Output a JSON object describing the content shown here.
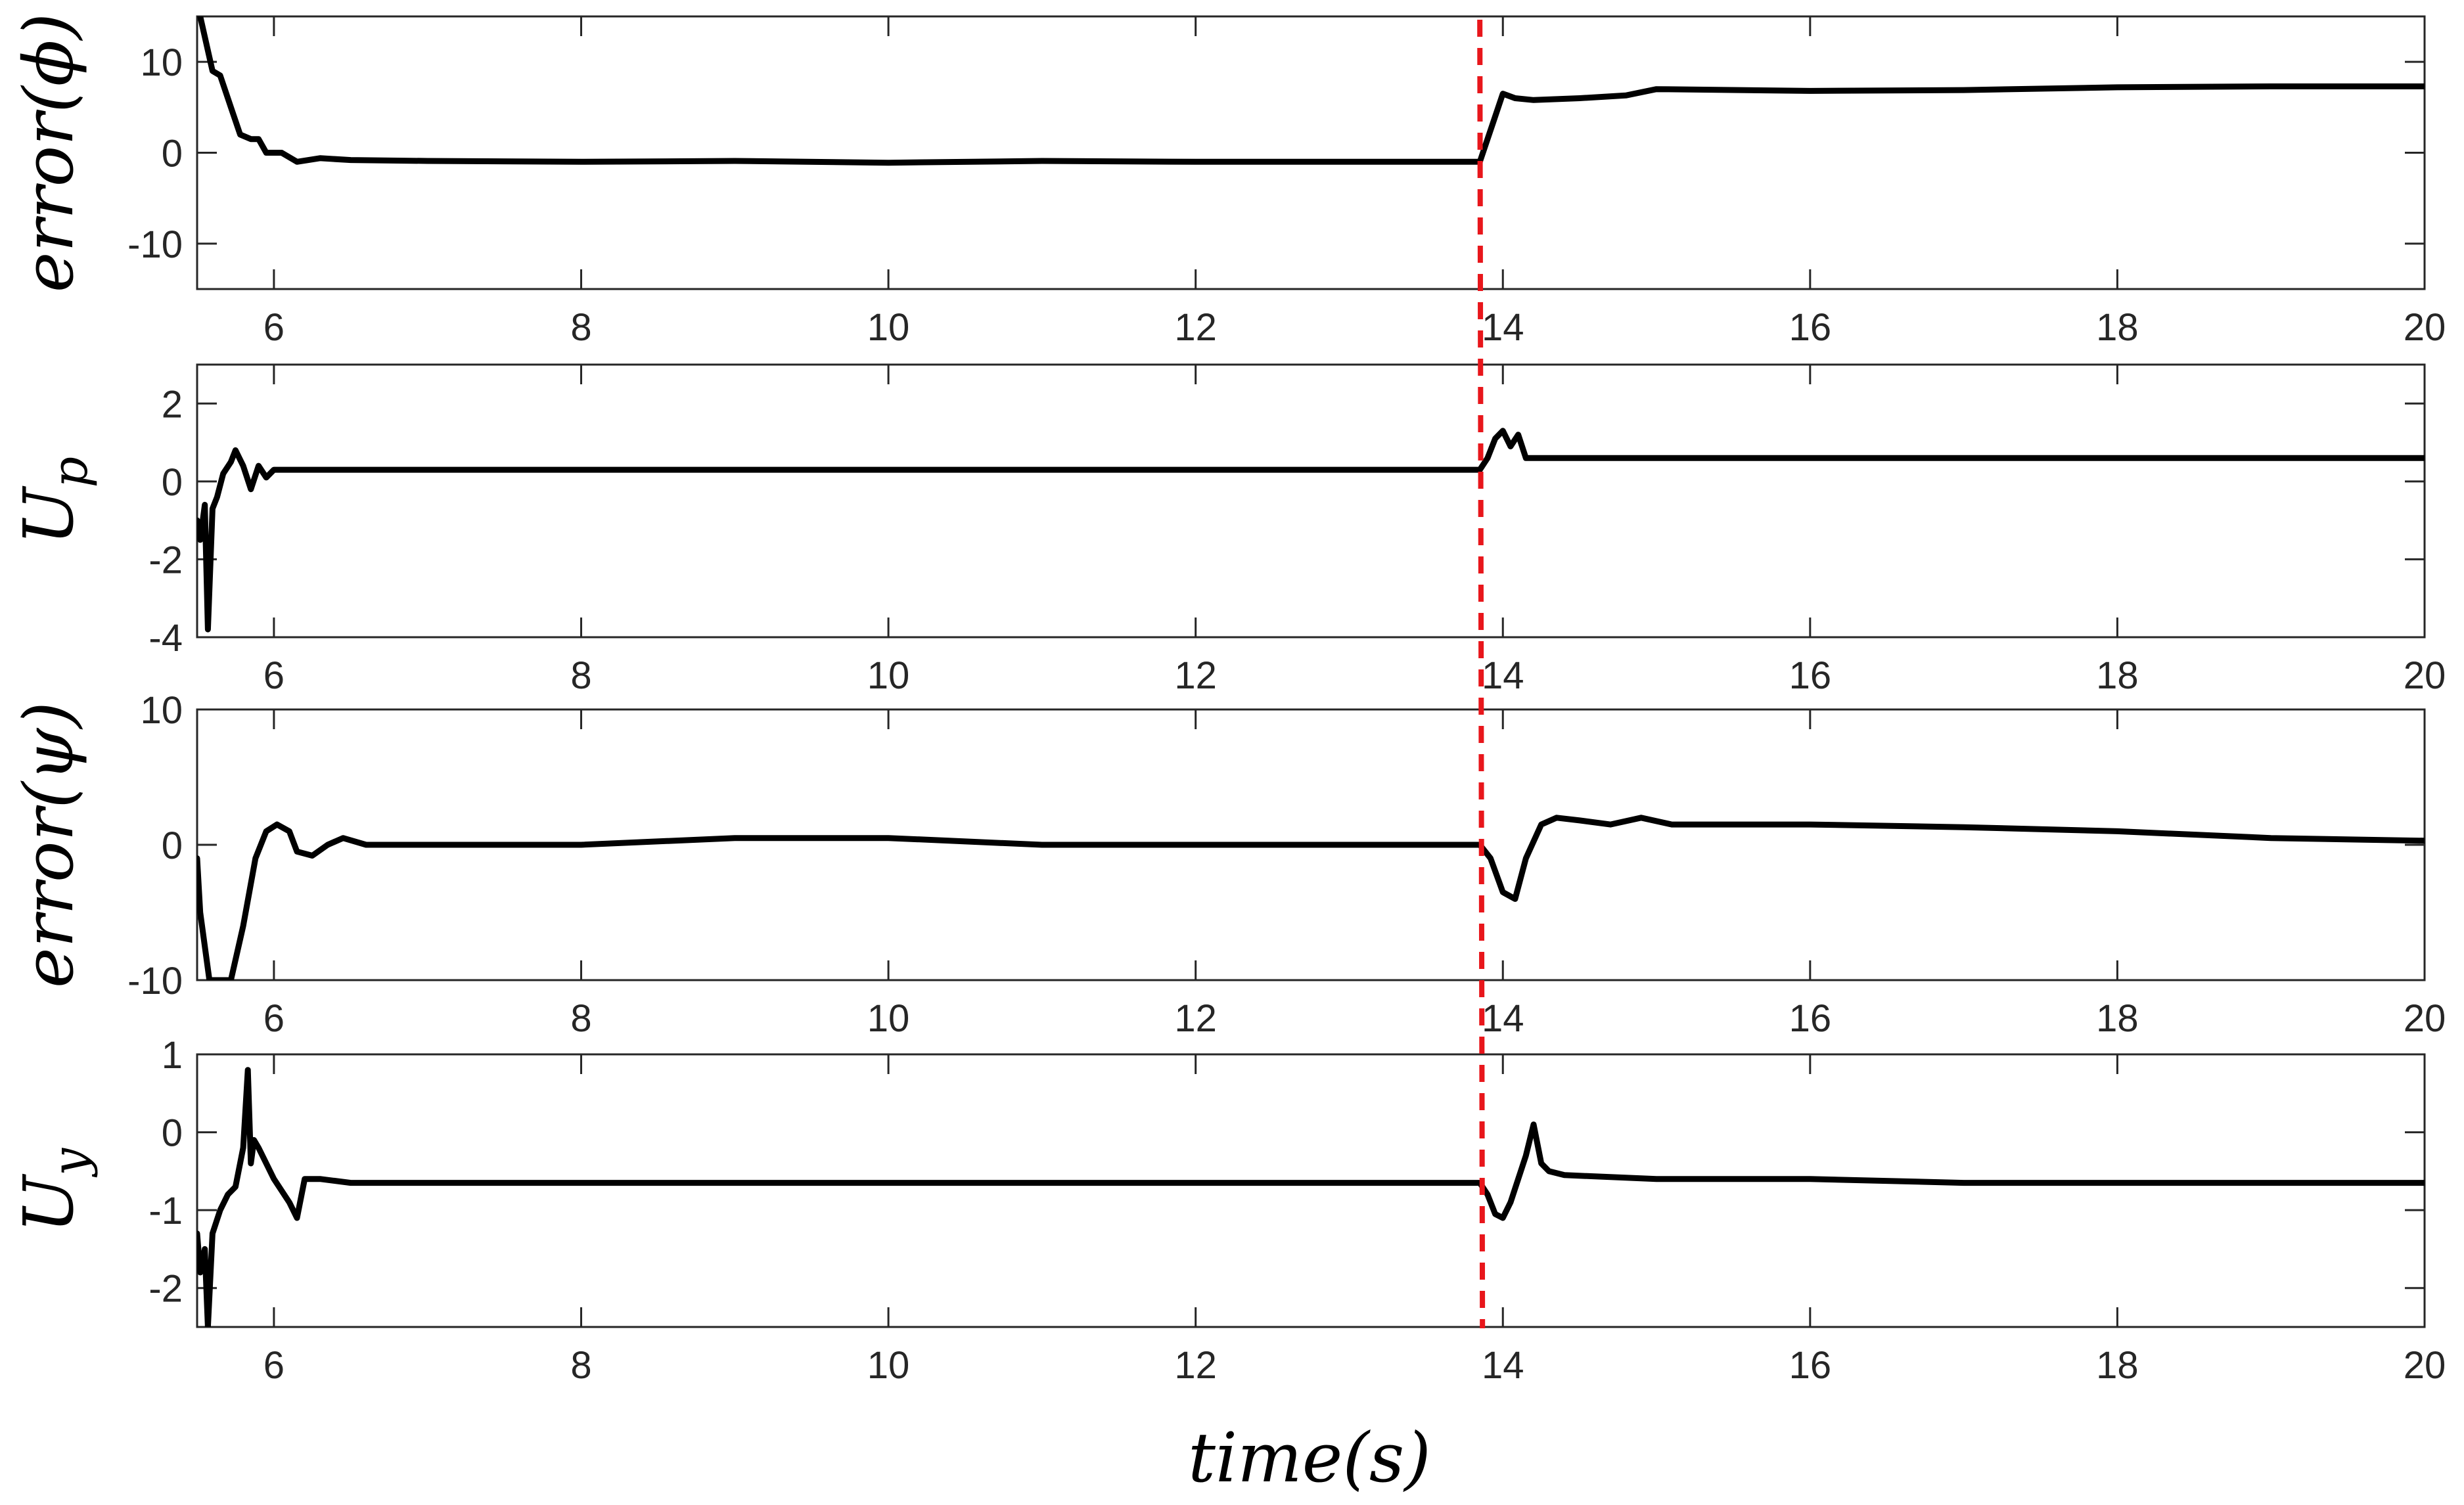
{
  "chart_data": [
    {
      "type": "line",
      "ylabel": "error(ϕ)",
      "xlabel": "",
      "xlim": [
        5.5,
        20
      ],
      "ylim": [
        -15,
        15
      ],
      "xticks": [
        "6",
        "8",
        "10",
        "12",
        "14",
        "16",
        "18",
        "20"
      ],
      "yticks": [
        "10",
        "0",
        "-10"
      ],
      "grid": false,
      "vertical_marker": 13.85,
      "series": [
        {
          "x": [
            5.52,
            5.6,
            5.65,
            5.72,
            5.78,
            5.85,
            5.9,
            5.95,
            6.05,
            6.15,
            6.3,
            6.5,
            7,
            8,
            9,
            10,
            11,
            12,
            13,
            13.85,
            13.93,
            14.0,
            14.08,
            14.2,
            14.5,
            14.8,
            15,
            16,
            17,
            18,
            19,
            20
          ],
          "y": [
            15,
            9,
            8.5,
            5,
            2,
            1.5,
            1.5,
            0,
            0,
            -1,
            -0.6,
            -0.8,
            -0.9,
            -1,
            -0.9,
            -1.1,
            -0.9,
            -1,
            -1,
            -1,
            3,
            6.5,
            6,
            5.8,
            6,
            6.3,
            7,
            6.8,
            6.9,
            7.2,
            7.3,
            7.3
          ]
        }
      ]
    },
    {
      "type": "line",
      "ylabel": "U_p",
      "xlabel": "",
      "xlim": [
        5.5,
        20
      ],
      "ylim": [
        -4,
        3
      ],
      "xticks": [
        "6",
        "8",
        "10",
        "12",
        "14",
        "16",
        "18",
        "20"
      ],
      "yticks": [
        "2",
        "0",
        "-2",
        "-4"
      ],
      "grid": false,
      "vertical_marker": 13.85,
      "series": [
        {
          "x": [
            5.5,
            5.52,
            5.55,
            5.57,
            5.6,
            5.63,
            5.67,
            5.72,
            5.75,
            5.8,
            5.85,
            5.9,
            5.95,
            6.0,
            6.1,
            6.2,
            7,
            8,
            9,
            10,
            11,
            12,
            13,
            13.85,
            13.9,
            13.95,
            14.0,
            14.05,
            14.1,
            14.15,
            14.3,
            15,
            16,
            17,
            18,
            19,
            20
          ],
          "y": [
            -1.0,
            -1.5,
            -0.6,
            -3.8,
            -0.7,
            -0.4,
            0.2,
            0.5,
            0.8,
            0.4,
            -0.2,
            0.4,
            0.1,
            0.3,
            0.3,
            0.3,
            0.3,
            0.3,
            0.3,
            0.3,
            0.3,
            0.3,
            0.3,
            0.3,
            0.6,
            1.1,
            1.3,
            0.9,
            1.2,
            0.6,
            0.6,
            0.6,
            0.6,
            0.6,
            0.6,
            0.6,
            0.6
          ]
        }
      ]
    },
    {
      "type": "line",
      "ylabel": "error(ψ)",
      "xlabel": "",
      "xlim": [
        5.5,
        20
      ],
      "ylim": [
        -10,
        10
      ],
      "xticks": [
        "6",
        "8",
        "10",
        "12",
        "14",
        "16",
        "18",
        "20"
      ],
      "yticks": [
        "10",
        "0",
        "-10"
      ],
      "grid": false,
      "vertical_marker": 13.85,
      "series": [
        {
          "x": [
            5.5,
            5.52,
            5.58,
            5.65,
            5.72,
            5.8,
            5.88,
            5.95,
            6.02,
            6.1,
            6.15,
            6.25,
            6.35,
            6.45,
            6.6,
            7,
            8,
            9,
            10,
            11,
            12,
            13,
            13.85,
            13.92,
            14.0,
            14.08,
            14.15,
            14.25,
            14.35,
            14.5,
            14.7,
            14.9,
            15.1,
            15.3,
            16,
            17,
            18,
            19,
            20
          ],
          "y": [
            -1,
            -5,
            -10,
            -10,
            -10,
            -6,
            -1,
            1,
            1.5,
            1,
            -0.5,
            -0.8,
            0,
            0.5,
            0,
            0,
            0,
            0.5,
            0.5,
            0,
            0,
            0,
            0,
            -1,
            -3.5,
            -4,
            -1,
            1.5,
            2,
            1.8,
            1.5,
            2,
            1.5,
            1.5,
            1.5,
            1.3,
            1,
            0.5,
            0.3
          ]
        }
      ]
    },
    {
      "type": "line",
      "ylabel": "U_y",
      "xlabel": "time(s)",
      "xlim": [
        5.5,
        20
      ],
      "ylim": [
        -2.5,
        1
      ],
      "xticks": [
        "6",
        "8",
        "10",
        "12",
        "14",
        "16",
        "18",
        "20"
      ],
      "yticks": [
        "1",
        "0",
        "-1",
        "-2"
      ],
      "grid": false,
      "vertical_marker": 13.85,
      "series": [
        {
          "x": [
            5.5,
            5.52,
            5.55,
            5.57,
            5.6,
            5.65,
            5.7,
            5.75,
            5.8,
            5.83,
            5.85,
            5.87,
            5.9,
            6.0,
            6.1,
            6.15,
            6.2,
            6.3,
            6.5,
            7,
            8,
            9,
            10,
            11,
            12,
            13,
            13.85,
            13.9,
            13.95,
            14.0,
            14.05,
            14.1,
            14.15,
            14.2,
            14.25,
            14.3,
            14.4,
            15,
            16,
            17,
            18,
            19,
            20
          ],
          "y": [
            -1.3,
            -1.8,
            -1.5,
            -2.5,
            -1.3,
            -1.0,
            -0.8,
            -0.7,
            -0.2,
            0.8,
            -0.4,
            -0.1,
            -0.2,
            -0.6,
            -0.9,
            -1.1,
            -0.6,
            -0.6,
            -0.65,
            -0.65,
            -0.65,
            -0.65,
            -0.65,
            -0.65,
            -0.65,
            -0.65,
            -0.65,
            -0.8,
            -1.05,
            -1.1,
            -0.9,
            -0.6,
            -0.3,
            0.1,
            -0.4,
            -0.5,
            -0.55,
            -0.6,
            -0.6,
            -0.65,
            -0.65,
            -0.65,
            -0.65
          ]
        }
      ]
    }
  ]
}
